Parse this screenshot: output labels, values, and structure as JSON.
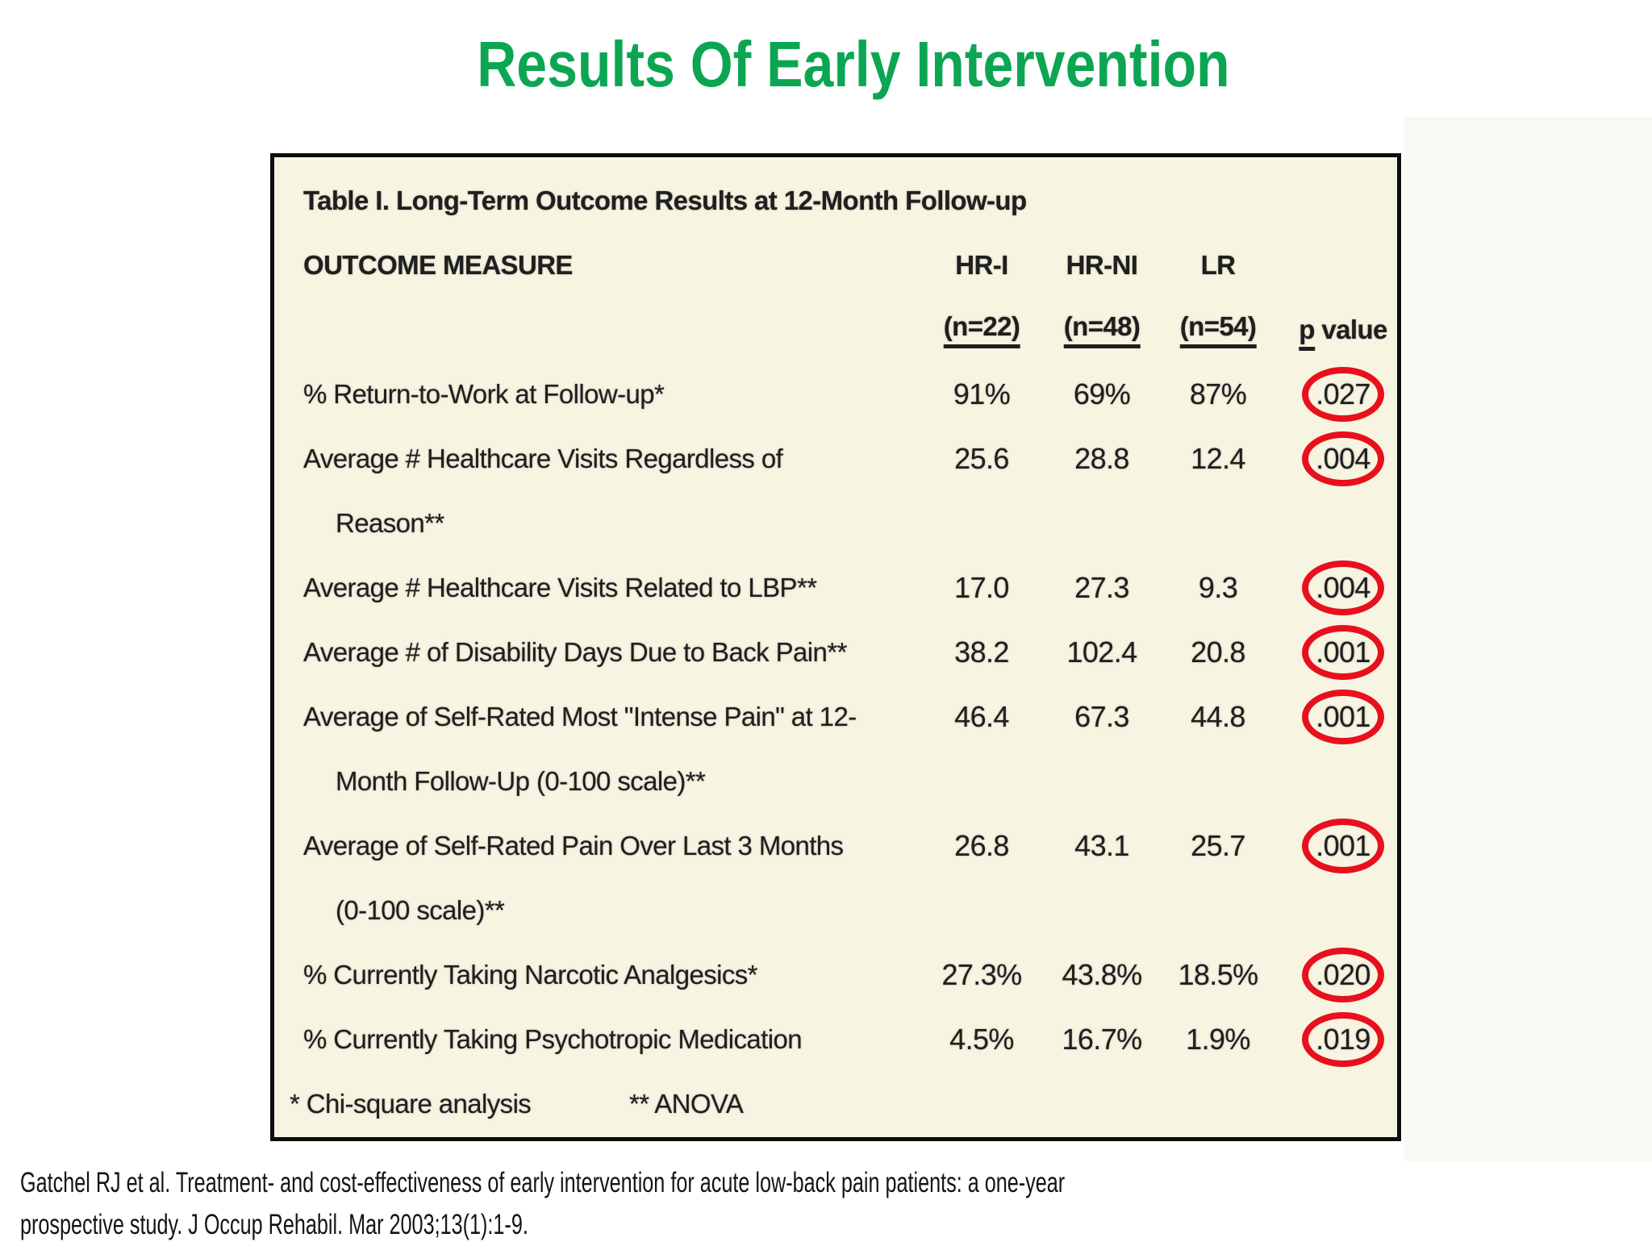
{
  "slide": {
    "title": "Results Of Early Intervention",
    "title_color": "#0ca652",
    "citation_lines": [
      "Gatchel RJ et al. Treatment- and cost-effectiveness of early intervention for acute low-back pain patients: a one-year",
      "prospective study. J Occup Rehabil. Mar 2003;13(1):1-9."
    ]
  },
  "table": {
    "caption": "Table I. Long-Term Outcome Results at 12-Month Follow-up",
    "outcome_header": "OUTCOME MEASURE",
    "group_headers": [
      "HR-I",
      "HR-NI",
      "LR"
    ],
    "n_labels": [
      "(n=22)",
      "(n=48)",
      "(n=54)"
    ],
    "p_header": {
      "underlined": "p",
      "rest": " value"
    },
    "rows": [
      {
        "label_lines": [
          "% Return-to-Work at Follow-up*"
        ],
        "values": [
          "91%",
          "69%",
          "87%"
        ],
        "p": ".027",
        "circled": true
      },
      {
        "label_lines": [
          "Average # Healthcare Visits Regardless of",
          "Reason**"
        ],
        "values": [
          "25.6",
          "28.8",
          "12.4"
        ],
        "p": ".004",
        "circled": true
      },
      {
        "label_lines": [
          "Average # Healthcare Visits Related to LBP**"
        ],
        "values": [
          "17.0",
          "27.3",
          "9.3"
        ],
        "p": ".004",
        "circled": true
      },
      {
        "label_lines": [
          "Average # of Disability Days Due to Back Pain**"
        ],
        "values": [
          "38.2",
          "102.4",
          "20.8"
        ],
        "p": ".001",
        "circled": true
      },
      {
        "label_lines": [
          "Average of Self-Rated Most \"Intense Pain\" at 12-",
          "Month Follow-Up (0-100 scale)**"
        ],
        "values": [
          "46.4",
          "67.3",
          "44.8"
        ],
        "p": ".001",
        "circled": true
      },
      {
        "label_lines": [
          "Average of Self-Rated Pain Over Last 3 Months",
          "(0-100 scale)**"
        ],
        "values": [
          "26.8",
          "43.1",
          "25.7"
        ],
        "p": ".001",
        "circled": true
      },
      {
        "label_lines": [
          "% Currently Taking Narcotic Analgesics*"
        ],
        "values": [
          "27.3%",
          "43.8%",
          "18.5%"
        ],
        "p": ".020",
        "circled": true
      },
      {
        "label_lines": [
          "% Currently Taking Psychotropic Medication"
        ],
        "values": [
          "4.5%",
          "16.7%",
          "1.9%"
        ],
        "p": ".019",
        "circled": true
      }
    ],
    "footnotes": [
      "* Chi-square analysis",
      "** ANOVA"
    ],
    "colors": {
      "table_background": "#f7f4e2",
      "table_border": "#0d0d0d",
      "circle_red": "#e8101c"
    }
  }
}
